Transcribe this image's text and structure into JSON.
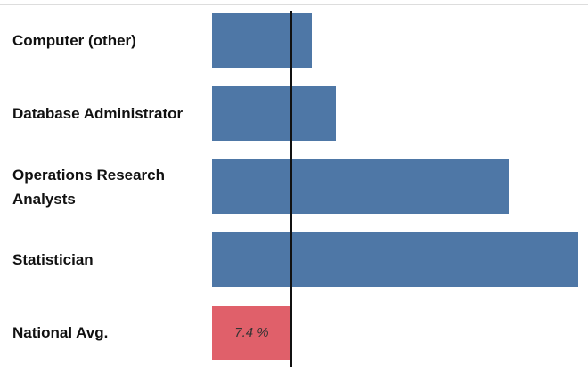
{
  "chart_data": {
    "type": "hbar",
    "categories": [
      "Computer (other)",
      "Database Administrator",
      "Operations Research Analysts",
      "Statistician",
      "National Avg."
    ],
    "values": [
      9.3,
      11.6,
      27.7,
      34.2,
      7.4
    ],
    "value_labels": [
      null,
      null,
      null,
      null,
      "7.4 %"
    ],
    "colors": [
      "#4e77a6",
      "#4e77a6",
      "#4e77a6",
      "#4e77a6",
      "#e0606a"
    ],
    "reference_line": true
  }
}
